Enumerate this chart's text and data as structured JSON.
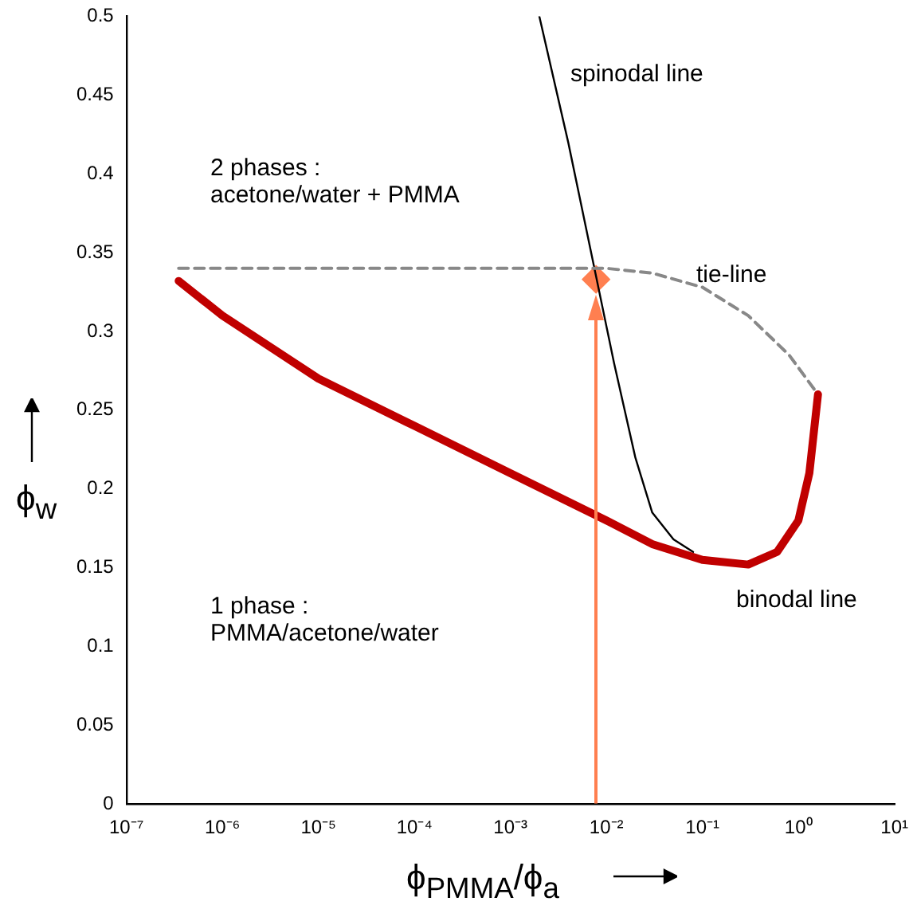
{
  "chart_data": {
    "type": "line",
    "xlabel": "ϕ$_{PMMA}$/ϕ$_{a}$",
    "ylabel": "ϕ$_{w}$",
    "log": "x",
    "grid": false,
    "legend": false,
    "marker": "none",
    "xlim": [
      1e-07,
      10
    ],
    "xticks": [
      {
        "value": 1e-07,
        "label": "10⁻⁷"
      },
      {
        "value": 1e-06,
        "label": "10⁻⁶"
      },
      {
        "value": 1e-05,
        "label": "10⁻⁵"
      },
      {
        "value": 0.0001,
        "label": "10⁻⁴"
      },
      {
        "value": 0.001,
        "label": "10⁻³"
      },
      {
        "value": 0.01,
        "label": "10⁻²"
      },
      {
        "value": 0.1,
        "label": "10⁻¹"
      },
      {
        "value": 1,
        "label": "10⁰"
      },
      {
        "value": 10,
        "label": "10¹"
      }
    ],
    "ylim": [
      0,
      0.5
    ],
    "yticks": [
      0,
      0.05,
      0.1,
      0.15,
      0.2,
      0.25,
      0.3,
      0.35,
      0.4,
      0.45,
      0.5
    ],
    "series": [
      {
        "color": "#c00000",
        "x": [
          3.5e-07,
          1e-06,
          1e-05,
          0.0001,
          0.001,
          0.01,
          0.03,
          0.1,
          0.3,
          0.6,
          1.0,
          1.3,
          1.6
        ],
        "values": [
          0.332,
          0.31,
          0.27,
          0.24,
          0.21,
          0.18,
          0.165,
          0.155,
          0.152,
          0.16,
          0.18,
          0.21,
          0.26
        ]
      },
      {
        "color": "#888888",
        "line_style": "dashed",
        "x": [
          3.5e-07,
          0.01,
          0.03,
          0.1,
          0.3,
          0.8,
          1.6
        ],
        "values": [
          0.34,
          0.34,
          0.337,
          0.328,
          0.31,
          0.285,
          0.26
        ]
      },
      {
        "color": "#000000",
        "x": [
          0.002,
          0.004,
          0.0078,
          0.012,
          0.02,
          0.03,
          0.05,
          0.08
        ],
        "values": [
          0.5,
          0.42,
          0.335,
          0.28,
          0.22,
          0.185,
          0.168,
          0.16
        ]
      },
      {
        "type": "scatter",
        "marker": "diamond",
        "color": "#ff7f50",
        "x": [
          0.0078
        ],
        "values": [
          0.333
        ]
      }
    ],
    "annotations": [
      "spinodal line",
      "tie-line",
      "binodal line",
      "2 phases :\nacetone/water + PMMA",
      "1 phase :\nPMMA/acetone/water"
    ]
  }
}
